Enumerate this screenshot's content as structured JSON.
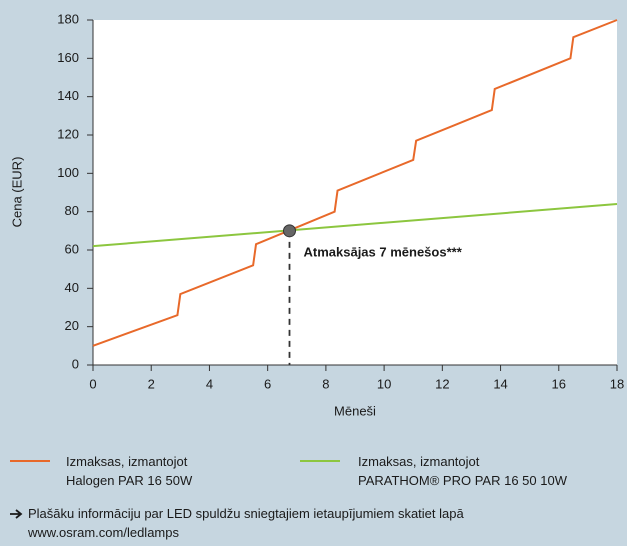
{
  "chart_data": {
    "type": "line",
    "xlabel": "Mēneši",
    "ylabel": "Cena (EUR)",
    "xlim": [
      0,
      18
    ],
    "xticks": [
      0,
      2,
      4,
      6,
      8,
      10,
      12,
      14,
      16,
      18
    ],
    "ylim": [
      0,
      180
    ],
    "yticks": [
      0,
      20,
      40,
      60,
      80,
      100,
      120,
      140,
      160,
      180
    ],
    "series": [
      {
        "name": "Izmaksas, izmantojot\nHalogen PAR 16 50W",
        "color": "#e8692a",
        "x": [
          0,
          2.9,
          3.0,
          5.5,
          5.6,
          8.3,
          8.4,
          11.0,
          11.1,
          13.7,
          13.8,
          16.4,
          16.5,
          18
        ],
        "values": [
          10,
          26,
          37,
          52,
          63,
          80,
          91,
          107,
          117,
          133,
          144,
          160,
          171,
          180
        ]
      },
      {
        "name": "Izmaksas, izmantojot\nPARATHOM® PRO PAR 16 50 10W",
        "color": "#8cc63f",
        "x": [
          0,
          18
        ],
        "values": [
          62,
          84
        ]
      }
    ],
    "annotation": {
      "text": "Atmaksājas 7 mēnešos***",
      "x": 6.75,
      "y": 70
    },
    "footnote": [
      "Plašāku informāciju par LED spuldžu sniegtajiem ietaupījumiem skatiet lapā",
      "www.osram.com/ledlamps"
    ]
  }
}
